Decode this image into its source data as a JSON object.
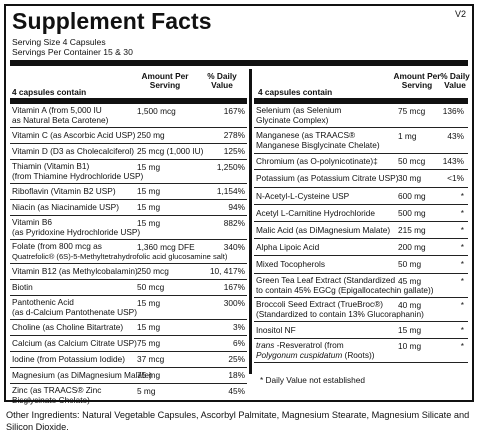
{
  "title": "Supplement Facts",
  "version": "V2",
  "serving_size": "Serving Size  4 Capsules",
  "servings_per_container": "Servings Per Container  15 & 30",
  "headers": {
    "left_contain": "4 capsules contain",
    "amount": [
      "Amount Per",
      "Serving"
    ],
    "daily": [
      "% Daily",
      "Value"
    ],
    "right_contain": "4 capsules contain"
  },
  "left_rows": [
    {
      "lines": [
        "Vitamin A (from 5,000 IU",
        "as Natural Beta Carotene)"
      ],
      "amount": "1,500 mcg",
      "dv": "167%"
    },
    {
      "lines": [
        "Vitamin C (as Ascorbic Acid USP)"
      ],
      "amount": "250 mg",
      "dv": "278%"
    },
    {
      "lines": [
        "Vitamin D (D3 as Cholecalciferol)"
      ],
      "amount": "25 mcg (1,000 IU)",
      "dv": "125%"
    },
    {
      "lines": [
        "Thiamin (Vitamin B1)",
        "(from Thiamine Hydrochloride USP)"
      ],
      "amount": "15 mg",
      "dv": "1,250%"
    },
    {
      "lines": [
        "Riboflavin (Vitamin B2 USP)"
      ],
      "amount": "15 mg",
      "dv": "1,154%"
    },
    {
      "lines": [
        "Niacin (as Niacinamide USP)"
      ],
      "amount": "15 mg",
      "dv": "94%"
    },
    {
      "lines": [
        "Vitamin B6",
        "(as Pyridoxine Hydrochloride USP)"
      ],
      "amount": "15 mg",
      "dv": "882%"
    },
    {
      "lines": [
        "Folate (from 800 mcg as",
        "Quatrefolic® (6S)-5-Methyltetrahydrofolic acid glucosamine salt)"
      ],
      "amount": "1,360 mcg DFE",
      "dv": "340%"
    },
    {
      "lines": [
        "Vitamin B12 (as Methylcobalamin)"
      ],
      "amount": "250 mcg",
      "dv": "10, 417%"
    },
    {
      "lines": [
        "Biotin"
      ],
      "amount": "50 mcg",
      "dv": "167%"
    },
    {
      "lines": [
        "Pantothenic Acid",
        "(as d-Calcium Pantothenate USP)"
      ],
      "amount": "15 mg",
      "dv": "300%"
    },
    {
      "lines": [
        "Choline (as Choline Bitartrate)"
      ],
      "amount": "15 mg",
      "dv": "3%"
    },
    {
      "lines": [
        "Calcium (as Calcium Citrate USP)"
      ],
      "amount": "75 mg",
      "dv": "6%"
    },
    {
      "lines": [
        "Iodine (from Potassium Iodide)"
      ],
      "amount": "37 mcg",
      "dv": "25%"
    },
    {
      "lines": [
        "Magnesium (as DiMagnesium Malate)"
      ],
      "amount": "75 mg",
      "dv": "18%"
    },
    {
      "lines": [
        "Zinc (as TRAACS® Zinc",
        "Bisglycinate Chelate)"
      ],
      "amount": "5 mg",
      "dv": "45%"
    }
  ],
  "right_rows": [
    {
      "lines": [
        "Selenium (as Selenium",
        "Glycinate Complex)"
      ],
      "amount": "75 mcg",
      "dv": "136%"
    },
    {
      "lines": [
        "Manganese (as TRAACS®",
        "Manganese Bisglycinate Chelate)"
      ],
      "amount": "1 mg",
      "dv": "43%"
    },
    {
      "lines": [
        "Chromium (as O-polynicotinate)‡"
      ],
      "amount": "50 mcg",
      "dv": "143%"
    },
    {
      "lines": [
        "Potassium (as Potassium Citrate USP)"
      ],
      "amount": "30 mg",
      "dv": "<1%"
    },
    {
      "lines": [
        "N-Acetyl-L-Cysteine USP"
      ],
      "amount": "600 mg",
      "dv": "*"
    },
    {
      "lines": [
        "Acetyl L-Carnitine Hydrochloride"
      ],
      "amount": "500 mg",
      "dv": "*"
    },
    {
      "lines": [
        "Malic Acid (as DiMagnesium Malate)"
      ],
      "amount": "215 mg",
      "dv": "*"
    },
    {
      "lines": [
        "Alpha Lipoic Acid"
      ],
      "amount": "200 mg",
      "dv": "*"
    },
    {
      "lines": [
        "Mixed Tocopherols"
      ],
      "amount": "50 mg",
      "dv": "*"
    },
    {
      "lines": [
        "Green Tea Leaf Extract  (Standardized",
        "to contain 45% EGCg (Epigallocatechin gallate))"
      ],
      "amount": "45 mg",
      "dv": "*"
    },
    {
      "lines": [
        "Broccoli Seed Extract (TrueBroc®)",
        "(Standardized to contain 13% Glucoraphanin)"
      ],
      "amount": "40 mg",
      "dv": "*"
    },
    {
      "lines": [
        "Inositol NF"
      ],
      "amount": "15 mg",
      "dv": "*"
    },
    {
      "lines": [
        "trans -Resveratrol (from",
        "Polygonum cuspidatum (Roots))"
      ],
      "amount": "10 mg",
      "dv": "*"
    }
  ],
  "footnote": "*  Daily Value not established",
  "other_ingredients": "Other Ingredients: Natural Vegetable Capsules, Ascorbyl Palmitate, Magnesium Stearate, Magnesium Silicate and Silicon Dioxide."
}
